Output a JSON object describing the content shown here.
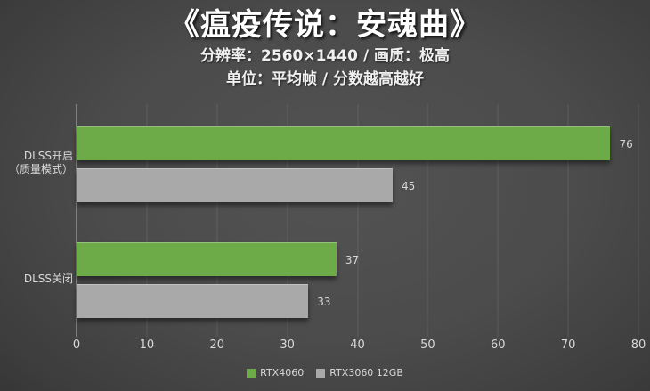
{
  "title": "《瘟疫传说：安魂曲》",
  "subtitle_line1": "分辨率：2560×1440 / 画质：极高",
  "subtitle_line2": "单位：平均帧 / 分数越高越好",
  "legend": {
    "items": [
      {
        "label": "RTX4060",
        "color": "#6cab47"
      },
      {
        "label": "RTX3060 12GB",
        "color": "#a9a9a9"
      }
    ]
  },
  "chart_data": {
    "type": "bar",
    "orientation": "horizontal",
    "title": "《瘟疫传说：安魂曲》",
    "subtitle": "分辨率：2560×1440 / 画质：极高 — 单位：平均帧 / 分数越高越好",
    "categories": [
      "DLSS开启\n（质量模式）",
      "DLSS关闭"
    ],
    "series": [
      {
        "name": "RTX4060",
        "color": "#6cab47",
        "values": [
          76,
          37
        ]
      },
      {
        "name": "RTX3060 12GB",
        "color": "#a9a9a9",
        "values": [
          45,
          33
        ]
      }
    ],
    "xlim": [
      0,
      80
    ],
    "xticks": [
      0,
      10,
      20,
      30,
      40,
      50,
      60,
      70,
      80
    ],
    "grid": true,
    "legend_position": "bottom",
    "value_labels": true
  },
  "colors": {
    "background_center": "#4f4f4f",
    "background_edge": "#262626",
    "bar_green": "#6cab47",
    "bar_gray": "#a9a9a9",
    "axis_line": "#dcdcdc",
    "text": "#d9d9d9",
    "title_text": "#ffffff"
  }
}
